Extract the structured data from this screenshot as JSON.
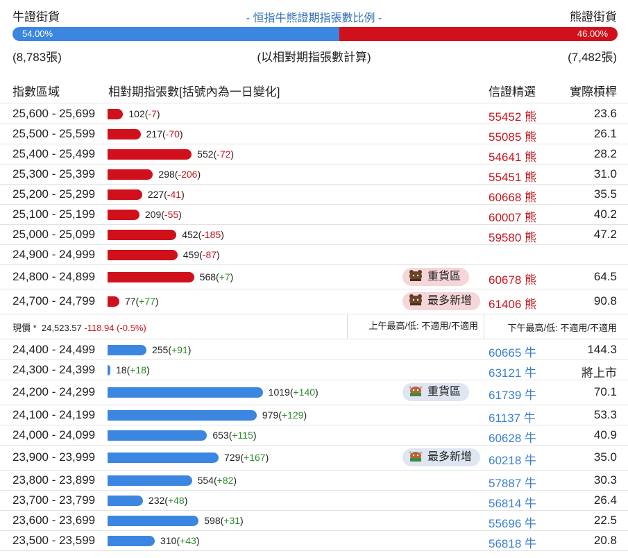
{
  "header": {
    "bull_label": "牛證街貨",
    "title": "- 恒指牛熊證期指張數比例 -",
    "bear_label": "熊證街貨",
    "bull_pct_text": "54.00%",
    "bear_pct_text": "46.00%",
    "bull_pct": 0.54,
    "bull_count": "(8,783張)",
    "basis_note": "(以相對期指張數計算)",
    "bear_count": "(7,482張)"
  },
  "columns": {
    "range": "指數區域",
    "count": "相對期指張數[括號內為一日變化]",
    "pick": "信證精選",
    "leverage": "實際槓桿"
  },
  "bear_rows": [
    {
      "range": "25,600 - 25,699",
      "count": 102,
      "count_text": "102",
      "change": "-7",
      "pick": "55452 熊",
      "leverage": "23.6",
      "badge": ""
    },
    {
      "range": "25,500 - 25,599",
      "count": 217,
      "count_text": "217",
      "change": "-70",
      "pick": "55085 熊",
      "leverage": "26.1",
      "badge": ""
    },
    {
      "range": "25,400 - 25,499",
      "count": 552,
      "count_text": "552",
      "change": "-72",
      "pick": "54641 熊",
      "leverage": "28.2",
      "badge": ""
    },
    {
      "range": "25,300 - 25,399",
      "count": 298,
      "count_text": "298",
      "change": "-206",
      "pick": "55451 熊",
      "leverage": "31.0",
      "badge": ""
    },
    {
      "range": "25,200 - 25,299",
      "count": 227,
      "count_text": "227",
      "change": "-41",
      "pick": "60668 熊",
      "leverage": "35.5",
      "badge": ""
    },
    {
      "range": "25,100 - 25,199",
      "count": 209,
      "count_text": "209",
      "change": "-55",
      "pick": "60007 熊",
      "leverage": "40.2",
      "badge": ""
    },
    {
      "range": "25,000 - 25,099",
      "count": 452,
      "count_text": "452",
      "change": "-185",
      "pick": "59580 熊",
      "leverage": "47.2",
      "badge": ""
    },
    {
      "range": "24,900 - 24,999",
      "count": 459,
      "count_text": "459",
      "change": "-87",
      "pick": "",
      "leverage": "",
      "badge": ""
    },
    {
      "range": "24,800 - 24,899",
      "count": 568,
      "count_text": "568",
      "change": "+7",
      "pick": "60678 熊",
      "leverage": "64.5",
      "badge": "重貨區"
    },
    {
      "range": "24,700 - 24,799",
      "count": 77,
      "count_text": "77",
      "change": "+77",
      "pick": "61406 熊",
      "leverage": "90.8",
      "badge": "最多新增"
    }
  ],
  "current": {
    "label": "現價 *",
    "price": "24,523.57",
    "change": "-118.94 (-0.5%)",
    "am_high_low": "上午最高/低: 不適用/不適用",
    "pm_high_low": "下午最高/低: 不適用/不適用"
  },
  "bull_rows": [
    {
      "range": "24,400 - 24,499",
      "count": 255,
      "count_text": "255",
      "change": "+91",
      "pick": "60665 牛",
      "leverage": "144.3",
      "badge": ""
    },
    {
      "range": "24,300 - 24,399",
      "count": 18,
      "count_text": "18",
      "change": "+18",
      "pick": "63121 牛",
      "leverage": "將上市",
      "badge": ""
    },
    {
      "range": "24,200 - 24,299",
      "count": 1019,
      "count_text": "1019",
      "change": "+140",
      "pick": "61739 牛",
      "leverage": "70.1",
      "badge": "重貨區"
    },
    {
      "range": "24,100 - 24,199",
      "count": 979,
      "count_text": "979",
      "change": "+129",
      "pick": "61137 牛",
      "leverage": "53.3",
      "badge": ""
    },
    {
      "range": "24,000 - 24,099",
      "count": 653,
      "count_text": "653",
      "change": "+115",
      "pick": "60628 牛",
      "leverage": "40.9",
      "badge": ""
    },
    {
      "range": "23,900 - 23,999",
      "count": 729,
      "count_text": "729",
      "change": "+167",
      "pick": "60218 牛",
      "leverage": "35.0",
      "badge": "最多新增"
    },
    {
      "range": "23,800 - 23,899",
      "count": 554,
      "count_text": "554",
      "change": "+82",
      "pick": "57887 牛",
      "leverage": "30.3",
      "badge": ""
    },
    {
      "range": "23,700 - 23,799",
      "count": 232,
      "count_text": "232",
      "change": "+48",
      "pick": "56814 牛",
      "leverage": "26.4",
      "badge": ""
    },
    {
      "range": "23,600 - 23,699",
      "count": 598,
      "count_text": "598",
      "change": "+31",
      "pick": "55696 牛",
      "leverage": "22.5",
      "badge": ""
    },
    {
      "range": "23,500 - 23,599",
      "count": 310,
      "count_text": "310",
      "change": "+43",
      "pick": "56818 牛",
      "leverage": "20.8",
      "badge": ""
    }
  ],
  "colors": {
    "bull": "#3b86e0",
    "bear": "#d0101a",
    "title": "#2f6fba",
    "negative": "#c8141c",
    "positive": "#2e8b2e"
  },
  "icons": {
    "bear_badge": "bear-icon",
    "bull_badge": "bull-icon"
  }
}
